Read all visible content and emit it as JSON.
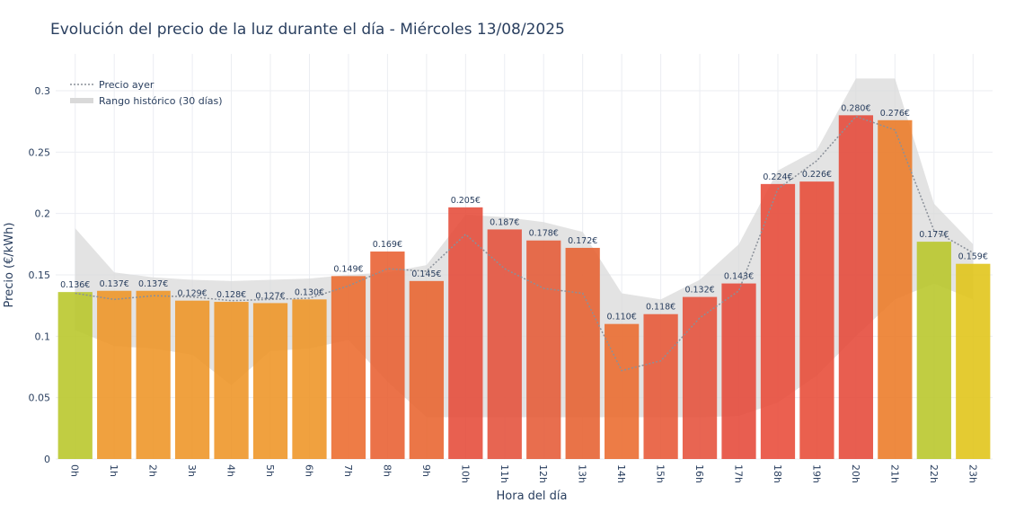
{
  "chart_data": {
    "type": "bar",
    "title": "Evolución del precio de la luz durante el día - Miércoles 13/08/2025",
    "xlabel": "Hora del día",
    "ylabel": "Precio (€/kWh)",
    "ylim": [
      0,
      0.33
    ],
    "yticks": [
      0,
      0.05,
      0.1,
      0.15,
      0.2,
      0.25,
      0.3
    ],
    "ytick_labels": [
      "0",
      "0.05",
      "0.1",
      "0.15",
      "0.2",
      "0.25",
      "0.3"
    ],
    "grid": true,
    "legend_position": "top-left",
    "categories": [
      "0h",
      "1h",
      "2h",
      "3h",
      "4h",
      "5h",
      "6h",
      "7h",
      "8h",
      "9h",
      "10h",
      "11h",
      "12h",
      "13h",
      "14h",
      "15h",
      "16h",
      "17h",
      "18h",
      "19h",
      "20h",
      "21h",
      "22h",
      "23h"
    ],
    "series": [
      {
        "type": "bar",
        "values": [
          0.136,
          0.137,
          0.137,
          0.129,
          0.128,
          0.127,
          0.13,
          0.149,
          0.169,
          0.145,
          0.205,
          0.187,
          0.178,
          0.172,
          0.11,
          0.118,
          0.132,
          0.143,
          0.224,
          0.226,
          0.28,
          0.276,
          0.177,
          0.159
        ],
        "labels": [
          "0.136€",
          "0.137€",
          "0.137€",
          "0.129€",
          "0.128€",
          "0.127€",
          "0.130€",
          "0.149€",
          "0.169€",
          "0.145€",
          "0.205€",
          "0.187€",
          "0.178€",
          "0.172€",
          "0.110€",
          "0.118€",
          "0.132€",
          "0.143€",
          "0.224€",
          "0.226€",
          "0.280€",
          "0.276€",
          "0.177€",
          "0.159€"
        ],
        "colors": [
          "#b8c628",
          "#ee9424",
          "#ee9424",
          "#ee9424",
          "#ee9424",
          "#ee9424",
          "#ee9424",
          "#ec6a2c",
          "#e85e30",
          "#e8632e",
          "#e54a38",
          "#e4503a",
          "#e55a36",
          "#e6602f",
          "#ea6a2c",
          "#e75636",
          "#e5503a",
          "#e54838",
          "#e84a38",
          "#e74a36",
          "#e54838",
          "#ec7a26",
          "#b8c628",
          "#e0c416"
        ]
      },
      {
        "name": "Precio ayer",
        "type": "line",
        "style": "dotted",
        "color": "#8a9099",
        "values": [
          0.135,
          0.13,
          0.133,
          0.132,
          0.129,
          0.13,
          0.131,
          0.141,
          0.155,
          0.153,
          0.183,
          0.155,
          0.139,
          0.135,
          0.072,
          0.08,
          0.115,
          0.137,
          0.22,
          0.243,
          0.279,
          0.268,
          0.186,
          0.168
        ]
      },
      {
        "name": "Rango histórico (30 días)",
        "type": "band",
        "color": "#d9d9d9",
        "upper": [
          0.188,
          0.152,
          0.148,
          0.146,
          0.145,
          0.146,
          0.147,
          0.15,
          0.152,
          0.158,
          0.199,
          0.197,
          0.193,
          0.185,
          0.135,
          0.13,
          0.146,
          0.175,
          0.235,
          0.252,
          0.31,
          0.31,
          0.208,
          0.175
        ],
        "lower": [
          0.105,
          0.092,
          0.09,
          0.085,
          0.06,
          0.088,
          0.09,
          0.097,
          0.063,
          0.034,
          0.034,
          0.034,
          0.034,
          0.034,
          0.034,
          0.034,
          0.034,
          0.035,
          0.046,
          0.068,
          0.1,
          0.13,
          0.143,
          0.13
        ]
      }
    ]
  }
}
